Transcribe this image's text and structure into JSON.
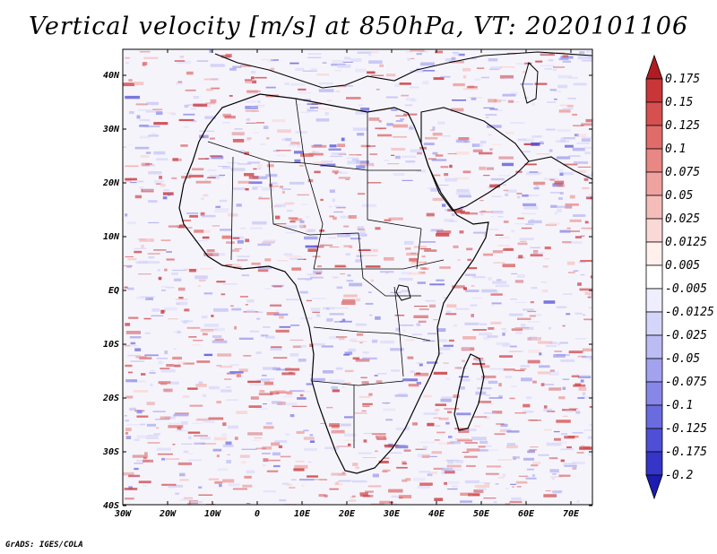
{
  "title": "Vertical velocity [m/s] at 850hPa, VT: 2020101106",
  "footer": "GrADS: IGES/COLA",
  "map": {
    "lat_labels": [
      "40N",
      "30N",
      "20N",
      "10N",
      "EQ",
      "10S",
      "20S",
      "30S",
      "40S"
    ],
    "lon_labels": [
      "30W",
      "20W",
      "10W",
      "0",
      "10E",
      "20E",
      "30E",
      "40E",
      "50E",
      "60E",
      "70E"
    ]
  },
  "colorbar": {
    "labels": [
      "0.175",
      "0.15",
      "0.125",
      "0.1",
      "0.075",
      "0.05",
      "0.025",
      "0.0125",
      "0.005",
      "-0.005",
      "-0.0125",
      "-0.025",
      "-0.05",
      "-0.075",
      "-0.1",
      "-0.125",
      "-0.175",
      "-0.2"
    ],
    "colors": [
      "#b01c22",
      "#c8363a",
      "#d6504f",
      "#e06c69",
      "#e88783",
      "#f0a29e",
      "#f5bdb9",
      "#fad8d5",
      "#fff0ee",
      "#ffffff",
      "#eeeeff",
      "#d5d5fa",
      "#bcbcf5",
      "#a2a2ef",
      "#8787e8",
      "#6b6be0",
      "#4f4fd6",
      "#3535c8",
      "#1c1cb0"
    ]
  }
}
